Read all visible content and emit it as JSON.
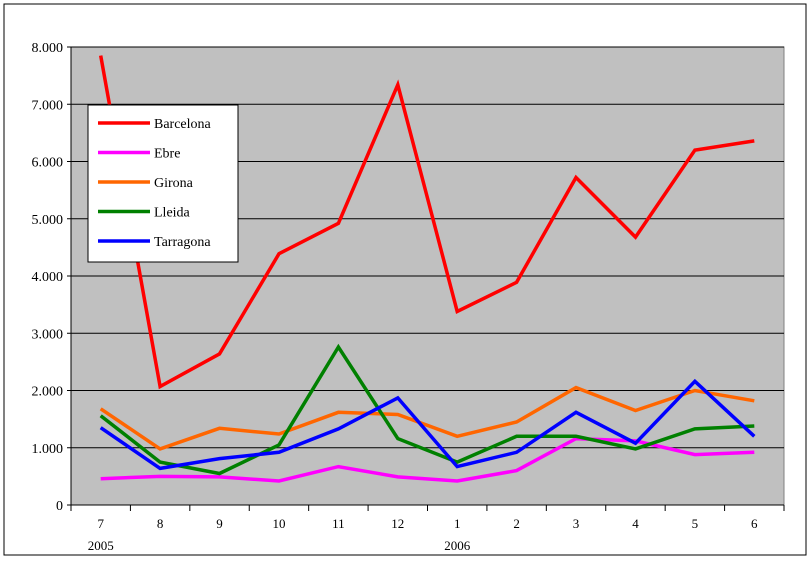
{
  "chart_data": {
    "type": "line",
    "title": "",
    "xlabel": "",
    "ylabel": "",
    "categories": [
      "7",
      "8",
      "9",
      "10",
      "11",
      "12",
      "1",
      "2",
      "3",
      "4",
      "5",
      "6"
    ],
    "year_labels": [
      {
        "label": "2005",
        "category": "7"
      },
      {
        "label": "2006",
        "category": "1"
      }
    ],
    "ylim": [
      0,
      8000
    ],
    "yticks": [
      {
        "value": 0,
        "label": "0"
      },
      {
        "value": 1000,
        "label": "1.000"
      },
      {
        "value": 2000,
        "label": "2.000"
      },
      {
        "value": 3000,
        "label": "3.000"
      },
      {
        "value": 4000,
        "label": "4.000"
      },
      {
        "value": 5000,
        "label": "5.000"
      },
      {
        "value": 6000,
        "label": "6.000"
      },
      {
        "value": 7000,
        "label": "7.000"
      },
      {
        "value": 8000,
        "label": "8.000"
      }
    ],
    "grid": true,
    "plot_background": "#c0c0c0",
    "legend_position": "top-left",
    "series": [
      {
        "name": "Barcelona",
        "color": "#ff0000",
        "values": [
          7850,
          2070,
          2640,
          4390,
          4920,
          7340,
          3380,
          3890,
          5720,
          4680,
          6200,
          6360
        ]
      },
      {
        "name": "Ebre",
        "color": "#ff00ff",
        "values": [
          460,
          500,
          490,
          420,
          670,
          490,
          420,
          600,
          1160,
          1120,
          880,
          920
        ]
      },
      {
        "name": "Girona",
        "color": "#ff6600",
        "values": [
          1680,
          980,
          1340,
          1240,
          1620,
          1580,
          1200,
          1450,
          2050,
          1650,
          2000,
          1820
        ]
      },
      {
        "name": "Lleida",
        "color": "#008000",
        "values": [
          1560,
          750,
          550,
          1050,
          2760,
          1160,
          750,
          1200,
          1200,
          980,
          1330,
          1380
        ]
      },
      {
        "name": "Tarragona",
        "color": "#0000ff",
        "values": [
          1350,
          640,
          810,
          920,
          1330,
          1870,
          670,
          920,
          1620,
          1080,
          2160,
          1200
        ]
      }
    ]
  }
}
